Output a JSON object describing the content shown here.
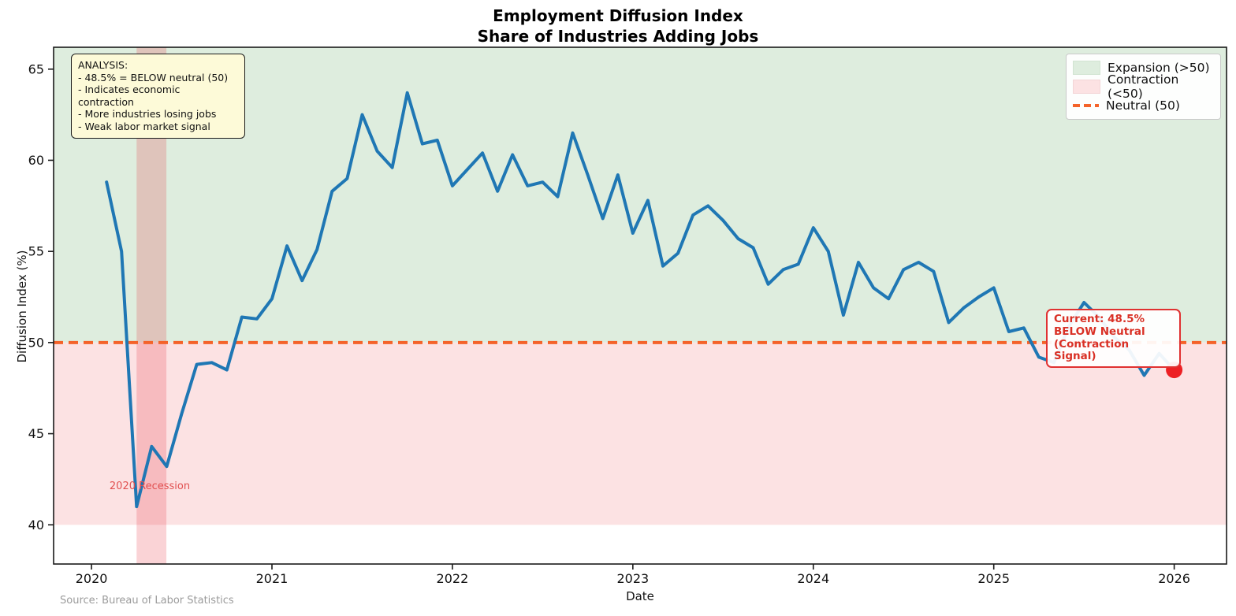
{
  "title": {
    "line1": "Employment Diffusion Index",
    "line2": "Share of Industries Adding Jobs"
  },
  "axes": {
    "x_label": "Date",
    "y_label": "Diffusion Index (%)"
  },
  "legend": {
    "items": [
      {
        "label": "Expansion (>50)",
        "swatch": "green-patch"
      },
      {
        "label": "Contraction (<50)",
        "swatch": "pink-patch"
      },
      {
        "label": "Neutral (50)",
        "swatch": "orange-dash"
      }
    ]
  },
  "annotations": {
    "analysis": {
      "title": "ANALYSIS:",
      "lines": [
        "- 48.5% = BELOW neutral (50)",
        "- Indicates economic contraction",
        "- More industries losing jobs",
        "- Weak labor market signal"
      ]
    },
    "current": {
      "lines": [
        "Current: 48.5%",
        "BELOW Neutral",
        "(Contraction Signal)"
      ]
    },
    "recession_label": "2020 Recession"
  },
  "source": "Source: Bureau of Labor Statistics",
  "chart_data": {
    "type": "line",
    "title": "Employment Diffusion Index - Share of Industries Adding Jobs",
    "xlabel": "Date",
    "ylabel": "Diffusion Index (%)",
    "xlim": [
      2019.79,
      2026.29
    ],
    "ylim": [
      37.85,
      66.2
    ],
    "x_ticks": [
      "2020",
      "2021",
      "2022",
      "2023",
      "2024",
      "2025",
      "2026"
    ],
    "x_tick_years": [
      2020,
      2021,
      2022,
      2023,
      2024,
      2025,
      2026
    ],
    "y_ticks": [
      40,
      45,
      50,
      55,
      60,
      65
    ],
    "neutral_level": 50,
    "regions": {
      "expansion": [
        50,
        66.2
      ],
      "contraction": [
        40,
        50
      ]
    },
    "recession_band_x": [
      2020.25,
      2020.415
    ],
    "grid": false,
    "legend_position": "upper right",
    "current_value": 48.5,
    "months": [
      "2020-01",
      "2020-02",
      "2020-03",
      "2020-04",
      "2020-05",
      "2020-06",
      "2020-07",
      "2020-08",
      "2020-09",
      "2020-10",
      "2020-11",
      "2020-12",
      "2021-01",
      "2021-02",
      "2021-03",
      "2021-04",
      "2021-05",
      "2021-06",
      "2021-07",
      "2021-08",
      "2021-09",
      "2021-10",
      "2021-11",
      "2021-12",
      "2022-01",
      "2022-02",
      "2022-03",
      "2022-04",
      "2022-05",
      "2022-06",
      "2022-07",
      "2022-08",
      "2022-09",
      "2022-10",
      "2022-11",
      "2022-12",
      "2023-01",
      "2023-02",
      "2023-03",
      "2023-04",
      "2023-05",
      "2023-06",
      "2023-07",
      "2023-08",
      "2023-09",
      "2023-10",
      "2023-11",
      "2023-12",
      "2024-01",
      "2024-02",
      "2024-03",
      "2024-04",
      "2024-05",
      "2024-06",
      "2024-07",
      "2024-08",
      "2024-09",
      "2024-10",
      "2024-11",
      "2024-12",
      "2025-01",
      "2025-02",
      "2025-03",
      "2025-04",
      "2025-05",
      "2025-06",
      "2025-07",
      "2025-08",
      "2025-09",
      "2025-10",
      "2025-11",
      "2025-12"
    ],
    "values": [
      58.8,
      55.0,
      41.0,
      44.3,
      43.2,
      46.1,
      48.8,
      48.9,
      48.5,
      51.4,
      51.3,
      52.4,
      55.3,
      53.4,
      55.1,
      58.3,
      59.0,
      62.5,
      60.5,
      59.6,
      63.7,
      60.9,
      61.1,
      58.6,
      59.5,
      60.4,
      58.3,
      60.3,
      58.6,
      58.8,
      58.0,
      61.5,
      59.2,
      56.8,
      59.2,
      56.0,
      57.8,
      54.2,
      54.9,
      57.0,
      57.5,
      56.7,
      55.7,
      55.2,
      53.2,
      54.0,
      54.3,
      56.3,
      55.0,
      51.5,
      54.4,
      53.0,
      52.4,
      54.0,
      54.4,
      53.9,
      51.1,
      51.9,
      52.5,
      53.0,
      50.6,
      50.8,
      49.2,
      48.9,
      50.9,
      52.2,
      51.4,
      50.3,
      49.6,
      48.2,
      49.4,
      48.5
    ],
    "colors": {
      "line": "#1f77b4",
      "neutral": "#f4632a",
      "expansion_bg": "#deedde",
      "contraction_bg": "#fce2e3",
      "recession_band": "rgba(230,10,30,0.18)",
      "dot": "#ed2024",
      "spine": "#1a1a1a"
    }
  }
}
